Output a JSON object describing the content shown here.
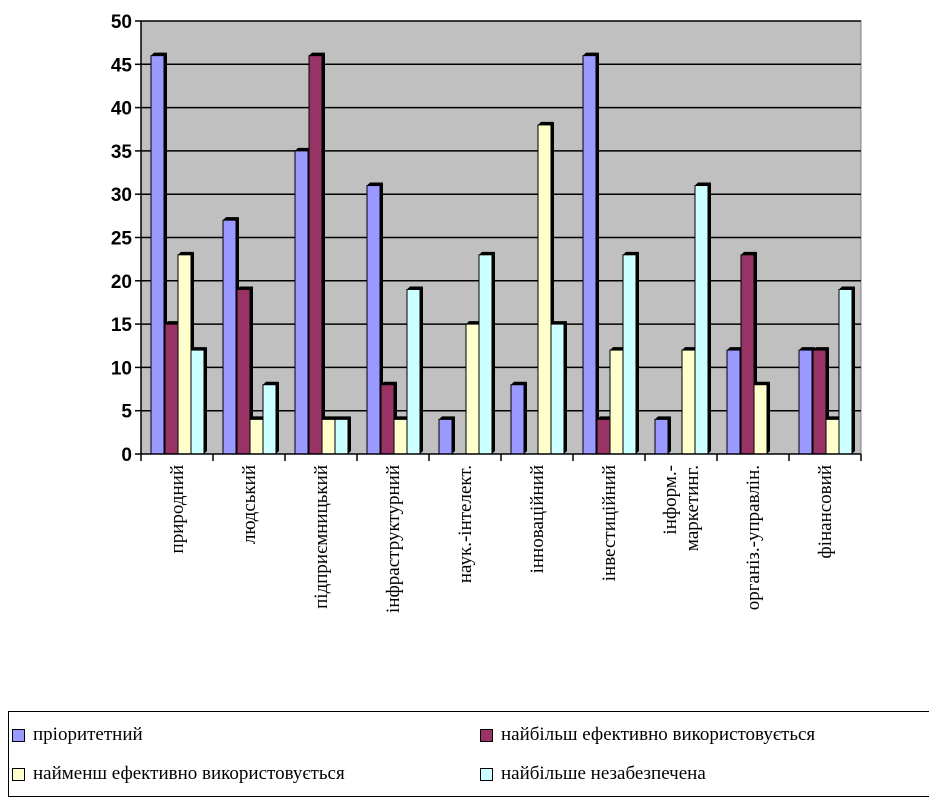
{
  "chart_data": {
    "type": "bar",
    "categories": [
      "природний",
      "людський",
      "підприємницький",
      "інфраструктурний",
      "наук.-інтелект.",
      "інноваційний",
      "інвестиційний",
      "інформ.- маркетинг.",
      "організ.-управлін.",
      "фінансовий"
    ],
    "category_lines": [
      [
        "природний"
      ],
      [
        "людський"
      ],
      [
        "підприємницький"
      ],
      [
        "інфраструктурний"
      ],
      [
        "наук.-інтелект."
      ],
      [
        "інноваційний"
      ],
      [
        "інвестиційний"
      ],
      [
        "інформ.-",
        "маркетинг."
      ],
      [
        "організ.-управлін."
      ],
      [
        "фінансовий"
      ]
    ],
    "series": [
      {
        "name": "пріоритетний",
        "color": "#9999ff",
        "values": [
          46,
          27,
          35,
          31,
          4,
          8,
          46,
          4,
          12,
          12
        ]
      },
      {
        "name": "найбільш ефективно використовується",
        "color": "#993366",
        "values": [
          15,
          19,
          46,
          8,
          0,
          0,
          4,
          0,
          23,
          12
        ]
      },
      {
        "name": "найменш ефективно використовується",
        "color": "#ffffcc",
        "values": [
          23,
          4,
          4,
          4,
          15,
          38,
          12,
          12,
          8,
          4
        ]
      },
      {
        "name": "найбільше незабезпечена",
        "color": "#ccffff",
        "values": [
          12,
          8,
          4,
          19,
          23,
          15,
          23,
          31,
          0,
          19
        ]
      }
    ],
    "ylim": [
      0,
      50
    ],
    "yticks": [
      0,
      5,
      10,
      15,
      20,
      25,
      30,
      35,
      40,
      45,
      50
    ],
    "plot_background": "#c0c0c0",
    "grid": true,
    "legend_position": "bottom"
  }
}
